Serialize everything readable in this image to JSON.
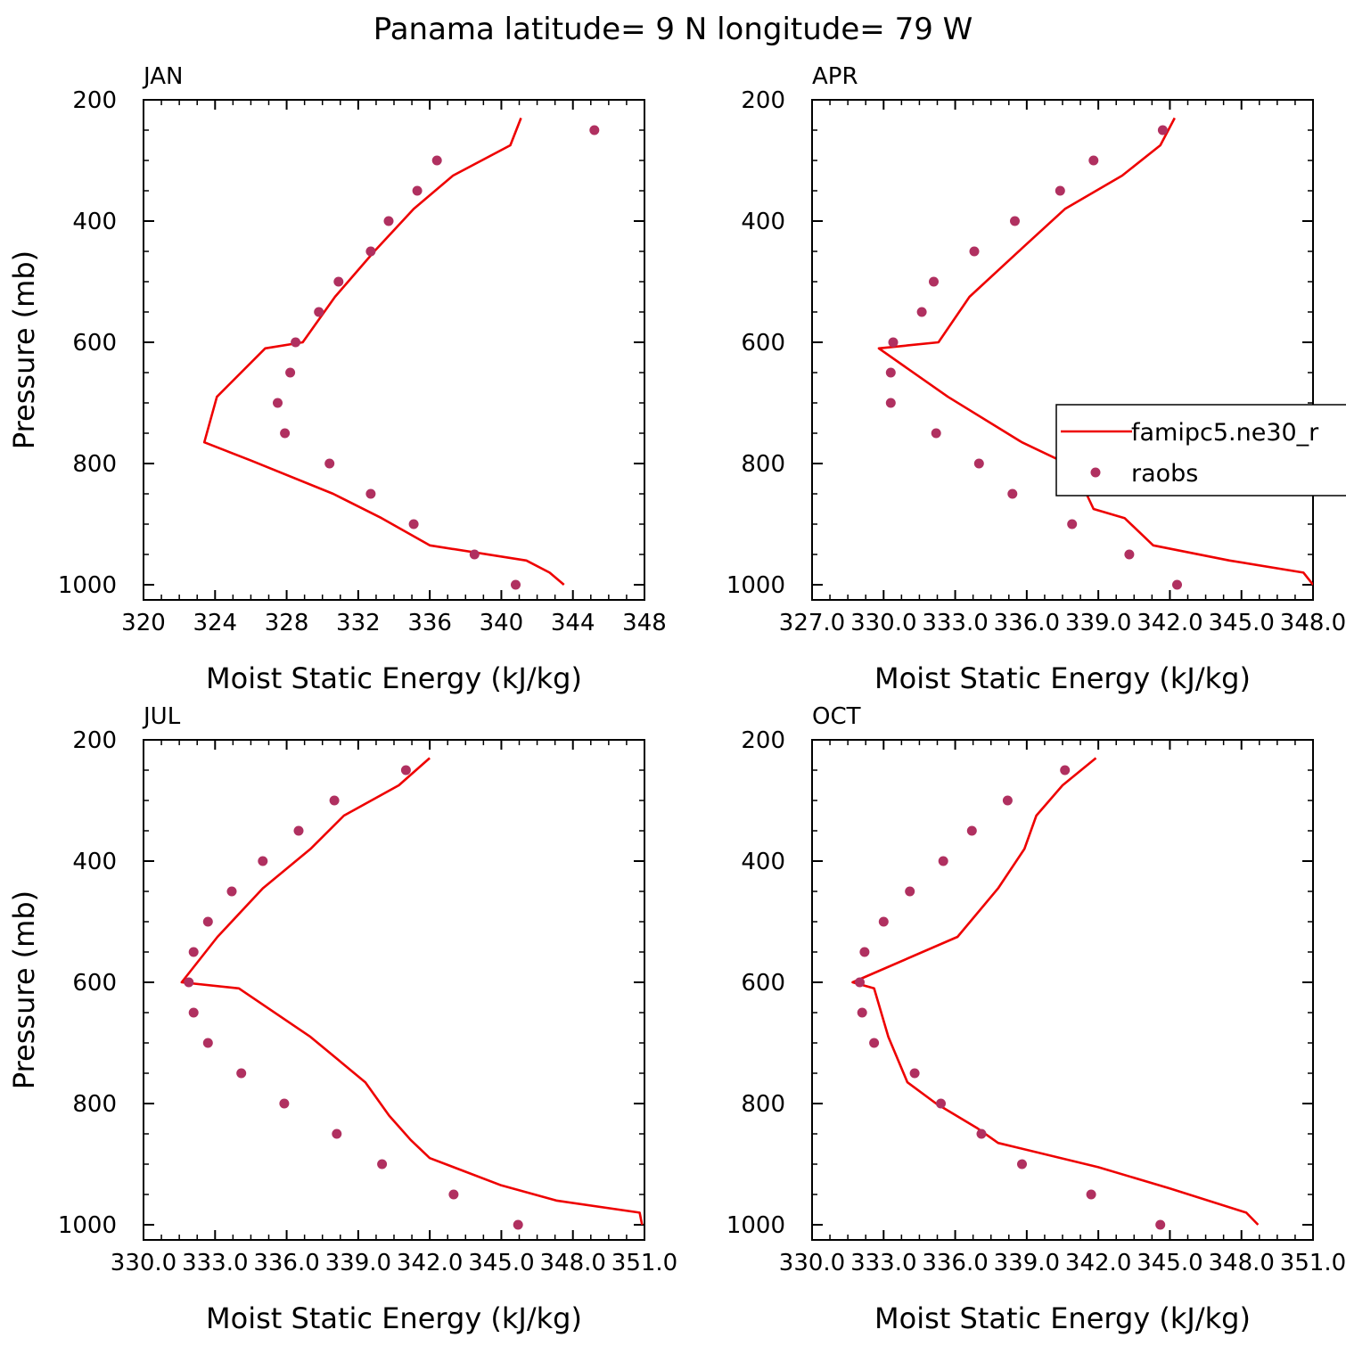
{
  "title": "Panama  latitude= 9 N longitude= 79 W",
  "colors": {
    "model_line": "#ee0000",
    "obs_marker": "#b03060"
  },
  "chart_data": [
    {
      "type": "line",
      "panel": "JAN",
      "xlabel": "Moist Static Energy (kJ/kg)",
      "ylabel": "Pressure (mb)",
      "xlim": [
        320,
        348
      ],
      "ylim": [
        1025,
        200
      ],
      "xticks": [
        "320",
        "324",
        "328",
        "332",
        "336",
        "340",
        "344",
        "348"
      ],
      "yticks": [
        "200",
        "400",
        "600",
        "800",
        "1000"
      ],
      "series": [
        {
          "kind": "line",
          "x": [
            341.1,
            340.5,
            337.3,
            335.1,
            332.9,
            330.7,
            328.9,
            326.8,
            324.1,
            323.4,
            326.0,
            330.6,
            333.3,
            336.0,
            341.4,
            342.7,
            343.5
          ],
          "y": [
            230,
            275,
            325,
            380,
            450,
            525,
            600,
            610,
            690,
            765,
            795,
            850,
            890,
            935,
            960,
            980,
            1000
          ]
        },
        {
          "kind": "scatter",
          "x": [
            345.2,
            336.4,
            335.3,
            333.7,
            332.7,
            330.9,
            329.8,
            328.5,
            328.2,
            327.5,
            327.9,
            330.4,
            332.7,
            335.1,
            338.5,
            340.8
          ],
          "y": [
            250,
            300,
            350,
            400,
            450,
            500,
            550,
            600,
            650,
            700,
            750,
            800,
            850,
            900,
            950,
            1000
          ]
        }
      ]
    },
    {
      "type": "line",
      "panel": "APR",
      "xlabel": "Moist Static Energy (kJ/kg)",
      "ylabel": "",
      "xlim": [
        327.0,
        348.0
      ],
      "ylim": [
        1025,
        200
      ],
      "xticks": [
        "327.0",
        "330.0",
        "333.0",
        "336.0",
        "339.0",
        "342.0",
        "345.0",
        "348.0"
      ],
      "yticks": [
        "200",
        "400",
        "600",
        "800",
        "1000"
      ],
      "legend": {
        "position": "right",
        "entries": [
          "famipc5.ne30_r",
          "raobs"
        ]
      },
      "series": [
        {
          "name": "famipc5.ne30_r",
          "kind": "line",
          "x": [
            342.2,
            341.6,
            340.0,
            337.6,
            335.8,
            333.6,
            332.3,
            329.8,
            332.7,
            335.8,
            337.4,
            338.5,
            338.8,
            340.1,
            341.3,
            344.5,
            347.6,
            348.0
          ],
          "y": [
            230,
            275,
            325,
            380,
            445,
            525,
            600,
            610,
            690,
            765,
            795,
            850,
            875,
            890,
            935,
            960,
            980,
            1000
          ]
        },
        {
          "name": "raobs",
          "kind": "scatter",
          "x": [
            341.7,
            338.8,
            337.4,
            335.5,
            333.8,
            332.1,
            331.6,
            330.4,
            330.3,
            330.3,
            332.2,
            334.0,
            335.4,
            337.9,
            340.3,
            342.3
          ],
          "y": [
            250,
            300,
            350,
            400,
            450,
            500,
            550,
            600,
            650,
            700,
            750,
            800,
            850,
            900,
            950,
            1000
          ]
        }
      ]
    },
    {
      "type": "line",
      "panel": "JUL",
      "xlabel": "Moist Static Energy (kJ/kg)",
      "ylabel": "Pressure (mb)",
      "xlim": [
        330.0,
        351.0
      ],
      "ylim": [
        1025,
        200
      ],
      "xticks": [
        "330.0",
        "333.0",
        "336.0",
        "339.0",
        "342.0",
        "345.0",
        "348.0",
        "351.0"
      ],
      "yticks": [
        "200",
        "400",
        "600",
        "800",
        "1000"
      ],
      "series": [
        {
          "kind": "line",
          "x": [
            342.0,
            340.7,
            338.4,
            337.0,
            335.0,
            333.1,
            331.6,
            334.0,
            337.0,
            339.3,
            340.3,
            341.2,
            342.0,
            345.0,
            347.3,
            350.8,
            350.9
          ],
          "y": [
            230,
            275,
            325,
            380,
            445,
            525,
            600,
            610,
            690,
            765,
            820,
            860,
            890,
            935,
            960,
            980,
            1000
          ]
        },
        {
          "kind": "scatter",
          "x": [
            341.0,
            338.0,
            336.5,
            335.0,
            333.7,
            332.7,
            332.1,
            331.9,
            332.1,
            332.7,
            334.1,
            335.9,
            338.1,
            340.0,
            343.0,
            345.7
          ],
          "y": [
            250,
            300,
            350,
            400,
            450,
            500,
            550,
            600,
            650,
            700,
            750,
            800,
            850,
            900,
            950,
            1000
          ]
        }
      ]
    },
    {
      "type": "line",
      "panel": "OCT",
      "xlabel": "Moist Static Energy (kJ/kg)",
      "ylabel": "",
      "xlim": [
        330.0,
        351.0
      ],
      "ylim": [
        1025,
        200
      ],
      "xticks": [
        "330.0",
        "333.0",
        "336.0",
        "339.0",
        "342.0",
        "345.0",
        "348.0",
        "351.0"
      ],
      "yticks": [
        "200",
        "400",
        "600",
        "800",
        "1000"
      ],
      "series": [
        {
          "kind": "line",
          "x": [
            341.9,
            340.5,
            339.4,
            338.9,
            337.8,
            336.1,
            331.7,
            332.6,
            333.2,
            334.0,
            335.2,
            336.9,
            337.8,
            342.0,
            345.0,
            348.2,
            348.7
          ],
          "y": [
            230,
            275,
            325,
            380,
            445,
            525,
            600,
            610,
            690,
            765,
            800,
            840,
            865,
            905,
            940,
            980,
            1000
          ]
        },
        {
          "kind": "scatter",
          "x": [
            340.6,
            338.2,
            336.7,
            335.5,
            334.1,
            333.0,
            332.2,
            332.0,
            332.1,
            332.6,
            334.3,
            335.4,
            337.1,
            338.8,
            341.7,
            344.6
          ],
          "y": [
            250,
            300,
            350,
            400,
            450,
            500,
            550,
            600,
            650,
            700,
            750,
            800,
            850,
            900,
            950,
            1000
          ]
        }
      ]
    }
  ]
}
